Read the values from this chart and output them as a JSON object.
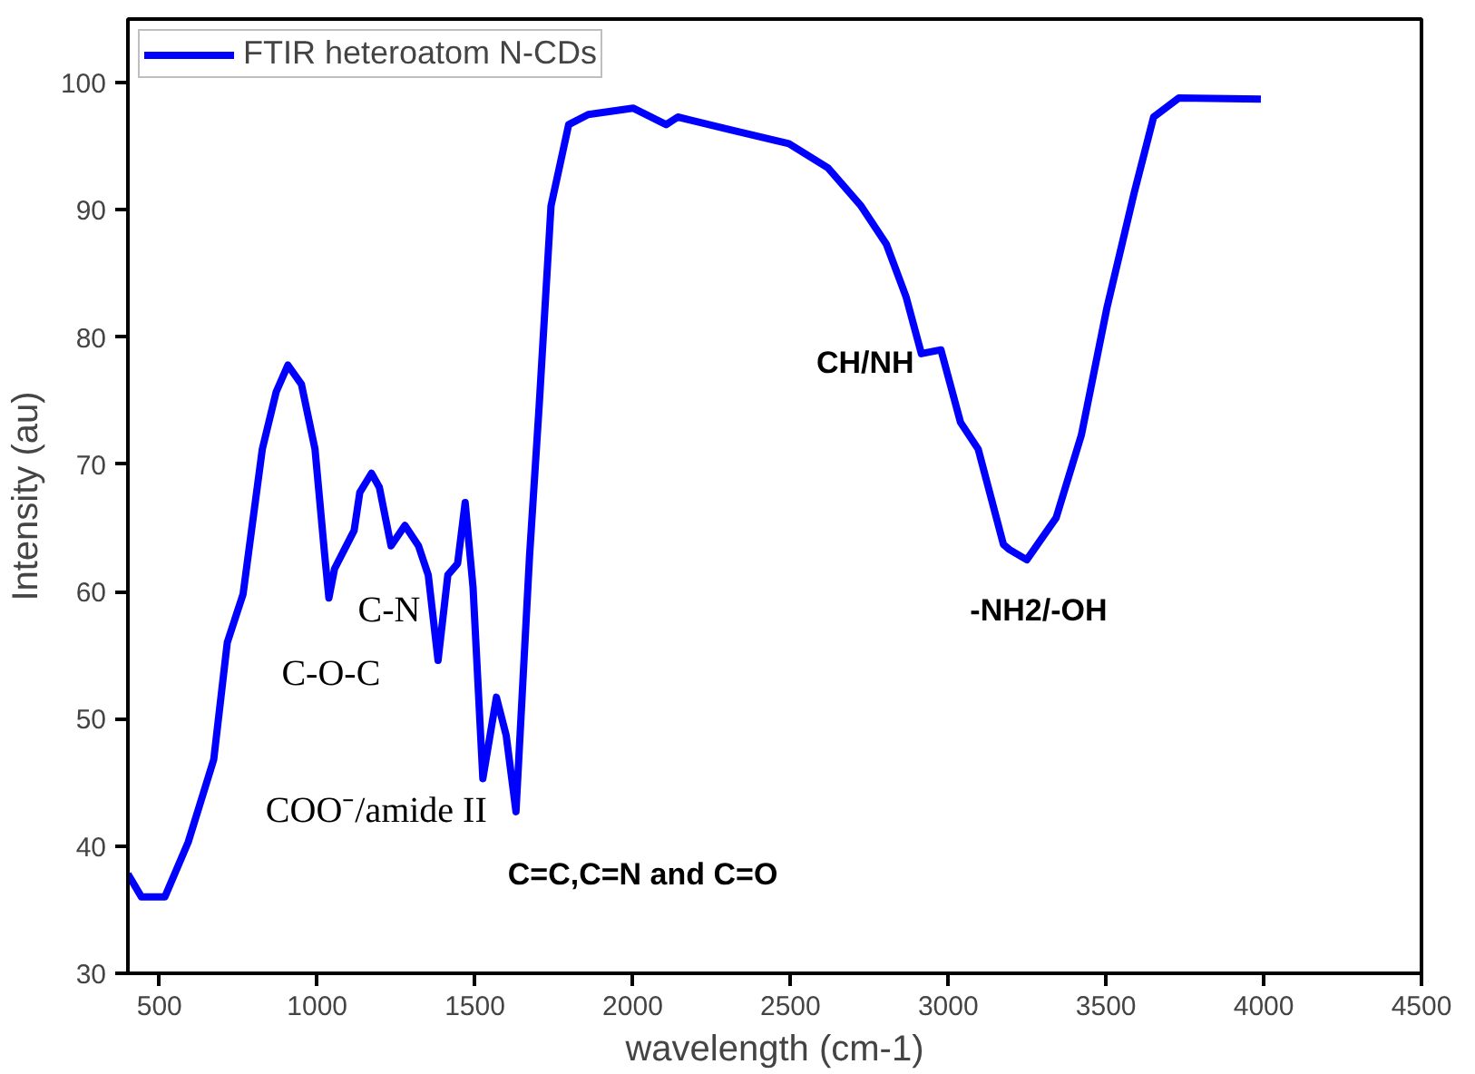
{
  "chart_data": {
    "type": "line",
    "xlabel": "wavelength (cm-1)",
    "ylabel": "Intensity (au)",
    "xlim": [
      400,
      4500
    ],
    "ylim": [
      30,
      105
    ],
    "xticks": [
      500,
      1000,
      1500,
      2000,
      2500,
      3000,
      3500,
      4000,
      4500
    ],
    "yticks": [
      30,
      40,
      50,
      60,
      70,
      80,
      90,
      100
    ],
    "grid": false,
    "legend": "top left",
    "marker": "none",
    "line_style": "solid",
    "series": [
      {
        "name": "FTIR heteroatom N-CDs",
        "color": "#0000ff",
        "x": [
          400,
          443,
          517,
          591,
          672,
          715,
          765,
          826,
          870,
          907,
          950,
          993,
          1024,
          1037,
          1055,
          1086,
          1117,
          1135,
          1172,
          1197,
          1234,
          1278,
          1321,
          1352,
          1383,
          1414,
          1445,
          1469,
          1494,
          1525,
          1568,
          1599,
          1630,
          1673,
          1704,
          1741,
          1797,
          1859,
          2001,
          2106,
          2143,
          2310,
          2495,
          2619,
          2724,
          2804,
          2866,
          2915,
          2977,
          3039,
          3095,
          3175,
          3194,
          3249,
          3342,
          3422,
          3503,
          3589,
          3651,
          3731,
          3991
        ],
        "values": [
          37.8,
          36,
          36,
          40.3,
          46.8,
          56,
          59.8,
          71.2,
          75.7,
          77.8,
          76.3,
          71.2,
          62.8,
          59.5,
          61.8,
          63.3,
          64.8,
          67.8,
          69.3,
          68.2,
          63.6,
          65.2,
          63.6,
          61.3,
          54.6,
          61.3,
          62.2,
          67,
          60.3,
          45.3,
          51.7,
          48.7,
          42.7,
          62.8,
          74.8,
          90.3,
          96.7,
          97.5,
          98,
          96.7,
          97.3,
          96.3,
          95.2,
          93.3,
          90.3,
          87.3,
          83.2,
          78.7,
          79,
          73.3,
          71.2,
          63.7,
          63.3,
          62.5,
          65.8,
          72.3,
          82.3,
          91.3,
          97.3,
          98.8,
          98.7
        ]
      }
    ],
    "annotations": [
      "C-O-C",
      "C-N",
      "COO⁻/amide II",
      "C=C,C=N and C=O",
      "CH/NH",
      "-NH2/-OH"
    ]
  }
}
